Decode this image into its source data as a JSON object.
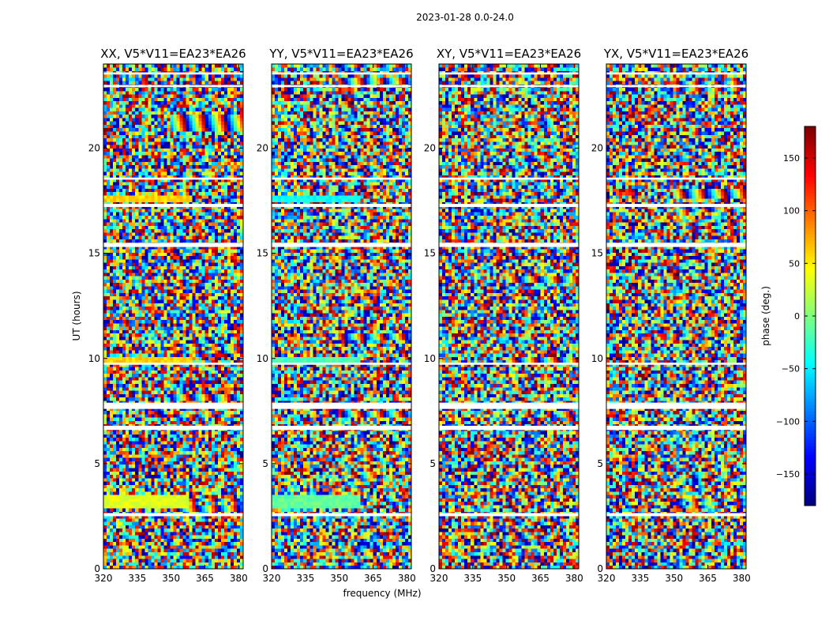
{
  "suptitle": "2023-01-28 0.0-24.0",
  "ylabel": "UT (hours)",
  "xlabel": "frequency (MHz)",
  "colorbar": {
    "label": "phase (deg.)",
    "range": [
      -180,
      180
    ],
    "ticks": [
      "150",
      "100",
      "50",
      "0",
      "−50",
      "−100",
      "−150"
    ],
    "tick_values": [
      150,
      100,
      50,
      0,
      -50,
      -100,
      -150
    ],
    "colormap": "jet",
    "colors": [
      "#00007f",
      "#0000ff",
      "#007fff",
      "#00ffff",
      "#7fff7f",
      "#ffff00",
      "#ff7f00",
      "#ff0000",
      "#7f0000"
    ]
  },
  "chart_data": [
    {
      "type": "heatmap",
      "title": "XX, V5*V11=EA23*EA26",
      "x_range": [
        320,
        382
      ],
      "y_range": [
        0,
        24
      ],
      "x_ticks": [
        "320",
        "335",
        "350",
        "365",
        "380"
      ],
      "x_tick_values": [
        320,
        335,
        350,
        365,
        380
      ],
      "y_ticks": [
        "0",
        "5",
        "10",
        "15",
        "20"
      ],
      "y_tick_values": [
        0,
        5,
        10,
        15,
        20
      ],
      "value_range": [
        -180,
        180
      ],
      "flagged_hours": [
        [
          2.5,
          2.65
        ],
        [
          6.6,
          6.8
        ],
        [
          7.6,
          7.9
        ],
        [
          9.7,
          9.8
        ],
        [
          15.3,
          15.5
        ],
        [
          17.2,
          17.35
        ],
        [
          18.5,
          18.6
        ],
        [
          22.9,
          23.0
        ],
        [
          23.5,
          23.6
        ]
      ],
      "coherent_bands": [
        {
          "ut": [
            2.9,
            3.5
          ],
          "freq": [
            320,
            358
          ],
          "phase": 35
        },
        {
          "ut": [
            9.7,
            10.0
          ],
          "freq": [
            320,
            360
          ],
          "phase": 60
        },
        {
          "ut": [
            17.4,
            17.8
          ],
          "freq": [
            320,
            360
          ],
          "phase": 60
        }
      ]
    },
    {
      "type": "heatmap",
      "title": "YY, V5*V11=EA23*EA26",
      "x_range": [
        320,
        382
      ],
      "y_range": [
        0,
        24
      ],
      "x_ticks": [
        "320",
        "335",
        "350",
        "365",
        "380"
      ],
      "x_tick_values": [
        320,
        335,
        350,
        365,
        380
      ],
      "y_ticks": [
        "0",
        "5",
        "10",
        "15",
        "20"
      ],
      "y_tick_values": [
        0,
        5,
        10,
        15,
        20
      ],
      "value_range": [
        -180,
        180
      ],
      "flagged_hours": [
        [
          2.5,
          2.65
        ],
        [
          6.6,
          6.8
        ],
        [
          7.6,
          7.9
        ],
        [
          9.7,
          9.8
        ],
        [
          15.3,
          15.5
        ],
        [
          17.2,
          17.35
        ],
        [
          18.5,
          18.6
        ],
        [
          22.9,
          23.0
        ],
        [
          23.5,
          23.6
        ]
      ],
      "coherent_bands": [
        {
          "ut": [
            2.9,
            3.5
          ],
          "freq": [
            320,
            360
          ],
          "phase": -10
        },
        {
          "ut": [
            9.7,
            10.0
          ],
          "freq": [
            320,
            360
          ],
          "phase": -20
        },
        {
          "ut": [
            17.4,
            17.8
          ],
          "freq": [
            320,
            360
          ],
          "phase": -40
        }
      ]
    },
    {
      "type": "heatmap",
      "title": "XY, V5*V11=EA23*EA26",
      "x_range": [
        320,
        382
      ],
      "y_range": [
        0,
        24
      ],
      "x_ticks": [
        "320",
        "335",
        "350",
        "365",
        "380"
      ],
      "x_tick_values": [
        320,
        335,
        350,
        365,
        380
      ],
      "y_ticks": [
        "0",
        "5",
        "10",
        "15",
        "20"
      ],
      "y_tick_values": [
        0,
        5,
        10,
        15,
        20
      ],
      "value_range": [
        -180,
        180
      ],
      "flagged_hours": [
        [
          2.5,
          2.65
        ],
        [
          6.6,
          6.8
        ],
        [
          7.6,
          7.9
        ],
        [
          9.7,
          9.8
        ],
        [
          15.3,
          15.5
        ],
        [
          17.2,
          17.35
        ],
        [
          18.5,
          18.6
        ],
        [
          22.9,
          23.0
        ],
        [
          23.5,
          23.6
        ]
      ],
      "coherent_bands": []
    },
    {
      "type": "heatmap",
      "title": "YX, V5*V11=EA23*EA26",
      "x_range": [
        320,
        382
      ],
      "y_range": [
        0,
        24
      ],
      "x_ticks": [
        "320",
        "335",
        "350",
        "365",
        "380"
      ],
      "x_tick_values": [
        320,
        335,
        350,
        365,
        380
      ],
      "y_ticks": [
        "0",
        "5",
        "10",
        "15",
        "20"
      ],
      "y_tick_values": [
        0,
        5,
        10,
        15,
        20
      ],
      "value_range": [
        -180,
        180
      ],
      "flagged_hours": [
        [
          2.5,
          2.65
        ],
        [
          6.6,
          6.8
        ],
        [
          7.6,
          7.9
        ],
        [
          9.7,
          9.8
        ],
        [
          15.3,
          15.5
        ],
        [
          17.2,
          17.35
        ],
        [
          18.5,
          18.6
        ],
        [
          22.9,
          23.0
        ],
        [
          23.5,
          23.6
        ]
      ],
      "coherent_bands": []
    }
  ]
}
